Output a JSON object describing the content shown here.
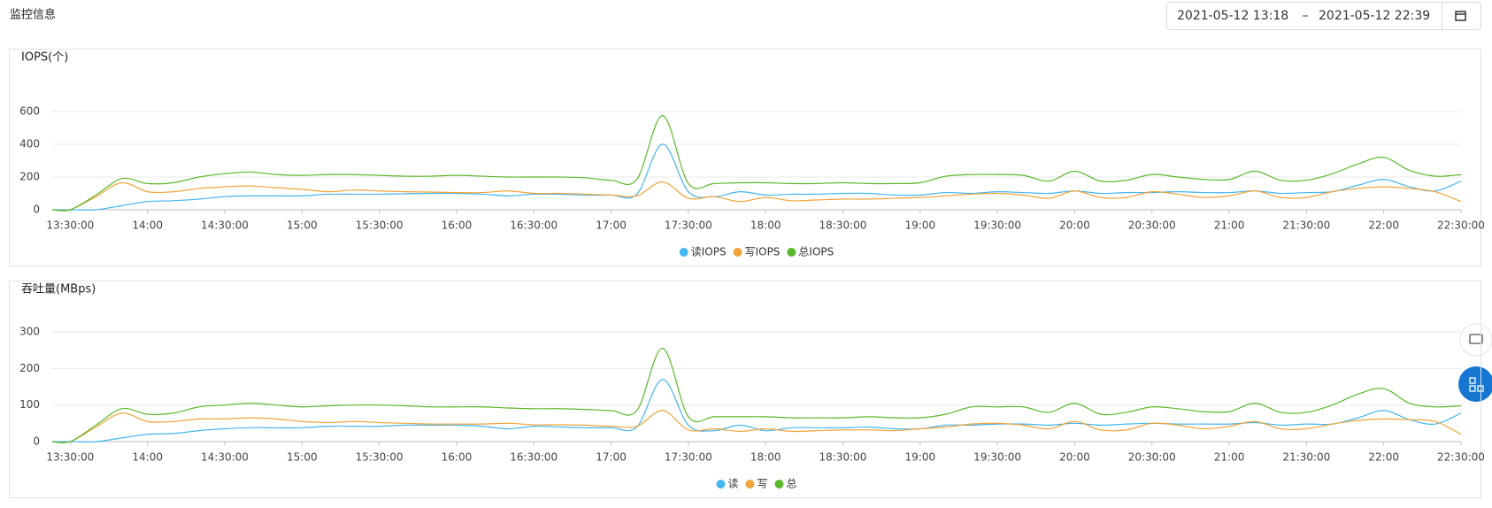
{
  "header": {
    "title": "监控信息",
    "date_start": "2021-05-12 13:18",
    "date_separator": "–",
    "date_end": "2021-05-12 22:39"
  },
  "chart_data": [
    {
      "type": "line",
      "title": "IOPS(个)",
      "x": [
        "13:23",
        "13:30",
        "13:40",
        "13:50",
        "14:00",
        "14:10",
        "14:20",
        "14:30",
        "14:40",
        "14:50",
        "15:00",
        "15:10",
        "15:20",
        "15:30",
        "15:40",
        "15:50",
        "16:00",
        "16:10",
        "16:20",
        "16:30",
        "16:40",
        "16:50",
        "17:00",
        "17:10",
        "17:20",
        "17:30",
        "17:40",
        "17:50",
        "18:00",
        "18:10",
        "18:20",
        "18:30",
        "18:40",
        "18:50",
        "19:00",
        "19:10",
        "19:20",
        "19:30",
        "19:40",
        "19:50",
        "20:00",
        "20:10",
        "20:20",
        "20:30",
        "20:40",
        "20:50",
        "21:00",
        "21:10",
        "21:20",
        "21:30",
        "21:40",
        "21:50",
        "22:00",
        "22:10",
        "22:20",
        "22:30"
      ],
      "series": [
        {
          "name": "读IOPS",
          "color": "#45b6ef",
          "values": [
            0,
            0,
            0,
            25,
            50,
            55,
            65,
            80,
            85,
            85,
            85,
            95,
            95,
            95,
            98,
            100,
            100,
            95,
            85,
            95,
            95,
            90,
            90,
            95,
            400,
            110,
            80,
            110,
            90,
            95,
            95,
            100,
            100,
            90,
            90,
            105,
            100,
            110,
            105,
            100,
            115,
            100,
            105,
            105,
            110,
            105,
            105,
            115,
            100,
            105,
            110,
            150,
            185,
            140,
            115,
            175
          ]
        },
        {
          "name": "写IOPS",
          "color": "#f0a43a",
          "values": [
            0,
            0,
            80,
            165,
            110,
            110,
            130,
            140,
            145,
            135,
            125,
            110,
            120,
            115,
            110,
            108,
            105,
            105,
            115,
            100,
            100,
            95,
            90,
            85,
            170,
            70,
            80,
            50,
            75,
            55,
            60,
            65,
            65,
            70,
            75,
            85,
            95,
            100,
            90,
            70,
            115,
            75,
            75,
            110,
            95,
            75,
            85,
            115,
            75,
            75,
            110,
            130,
            140,
            130,
            110,
            50
          ]
        },
        {
          "name": "总IOPS",
          "color": "#5cb82a",
          "values": [
            0,
            0,
            90,
            190,
            160,
            165,
            200,
            220,
            230,
            215,
            210,
            215,
            215,
            210,
            205,
            205,
            210,
            205,
            200,
            200,
            200,
            195,
            180,
            185,
            575,
            160,
            160,
            165,
            165,
            160,
            160,
            165,
            160,
            160,
            165,
            205,
            215,
            215,
            210,
            175,
            235,
            175,
            180,
            215,
            200,
            185,
            185,
            235,
            180,
            180,
            220,
            280,
            320,
            240,
            205,
            215
          ]
        }
      ],
      "xlim": [
        "13:23",
        "22:30"
      ],
      "xticks": [
        "13:30:00",
        "14:00",
        "14:30:00",
        "15:00",
        "15:30:00",
        "16:00",
        "16:30:00",
        "17:00",
        "17:30:00",
        "18:00",
        "18:30:00",
        "19:00",
        "19:30:00",
        "20:00",
        "20:30:00",
        "21:00",
        "21:30:00",
        "22:00",
        "22:30:00"
      ],
      "ylim": [
        0,
        600
      ],
      "yticks": [
        0,
        200,
        400,
        600
      ],
      "grid": true,
      "legend": "bottom"
    },
    {
      "type": "line",
      "title": "吞吐量(MBps)",
      "x": [
        "13:23",
        "13:30",
        "13:40",
        "13:50",
        "14:00",
        "14:10",
        "14:20",
        "14:30",
        "14:40",
        "14:50",
        "15:00",
        "15:10",
        "15:20",
        "15:30",
        "15:40",
        "15:50",
        "16:00",
        "16:10",
        "16:20",
        "16:30",
        "16:40",
        "16:50",
        "17:00",
        "17:10",
        "17:20",
        "17:30",
        "17:40",
        "17:50",
        "18:00",
        "18:10",
        "18:20",
        "18:30",
        "18:40",
        "18:50",
        "19:00",
        "19:10",
        "19:20",
        "19:30",
        "19:40",
        "19:50",
        "20:00",
        "20:10",
        "20:20",
        "20:30",
        "20:40",
        "20:50",
        "21:00",
        "21:10",
        "21:20",
        "21:30",
        "21:40",
        "21:50",
        "22:00",
        "22:10",
        "22:20",
        "22:30"
      ],
      "series": [
        {
          "name": "读",
          "color": "#45b6ef",
          "values": [
            0,
            0,
            0,
            10,
            20,
            22,
            30,
            35,
            38,
            38,
            38,
            42,
            42,
            42,
            45,
            45,
            45,
            42,
            35,
            42,
            40,
            38,
            38,
            40,
            170,
            45,
            30,
            45,
            30,
            38,
            38,
            38,
            40,
            35,
            35,
            45,
            45,
            48,
            48,
            45,
            50,
            45,
            48,
            50,
            48,
            48,
            48,
            52,
            45,
            48,
            48,
            65,
            85,
            60,
            48,
            78
          ]
        },
        {
          "name": "写",
          "color": "#f0a43a",
          "values": [
            0,
            0,
            40,
            78,
            55,
            55,
            62,
            62,
            65,
            62,
            55,
            52,
            55,
            52,
            50,
            48,
            48,
            48,
            50,
            46,
            46,
            45,
            42,
            42,
            85,
            32,
            35,
            28,
            35,
            28,
            30,
            32,
            32,
            30,
            35,
            40,
            48,
            50,
            45,
            35,
            55,
            32,
            32,
            50,
            45,
            35,
            42,
            55,
            35,
            35,
            48,
            58,
            62,
            60,
            55,
            20
          ]
        },
        {
          "name": "总",
          "color": "#5cb82a",
          "values": [
            0,
            0,
            45,
            90,
            75,
            78,
            95,
            100,
            105,
            100,
            95,
            98,
            100,
            100,
            98,
            95,
            95,
            95,
            92,
            90,
            90,
            88,
            85,
            85,
            255,
            68,
            68,
            68,
            68,
            65,
            65,
            65,
            68,
            65,
            65,
            75,
            95,
            95,
            95,
            80,
            105,
            75,
            80,
            95,
            90,
            82,
            82,
            105,
            80,
            80,
            100,
            130,
            145,
            105,
            95,
            98
          ]
        }
      ],
      "xlim": [
        "13:23",
        "22:30"
      ],
      "xticks": [
        "13:30:00",
        "14:00",
        "14:30:00",
        "15:00",
        "15:30:00",
        "16:00",
        "16:30:00",
        "17:00",
        "17:30:00",
        "18:00",
        "18:30:00",
        "19:00",
        "19:30:00",
        "20:00",
        "20:30:00",
        "21:00",
        "21:30:00",
        "22:00",
        "22:30:00"
      ],
      "ylim": [
        0,
        300
      ],
      "yticks": [
        0,
        100,
        200,
        300
      ],
      "grid": true,
      "legend": "bottom"
    }
  ]
}
